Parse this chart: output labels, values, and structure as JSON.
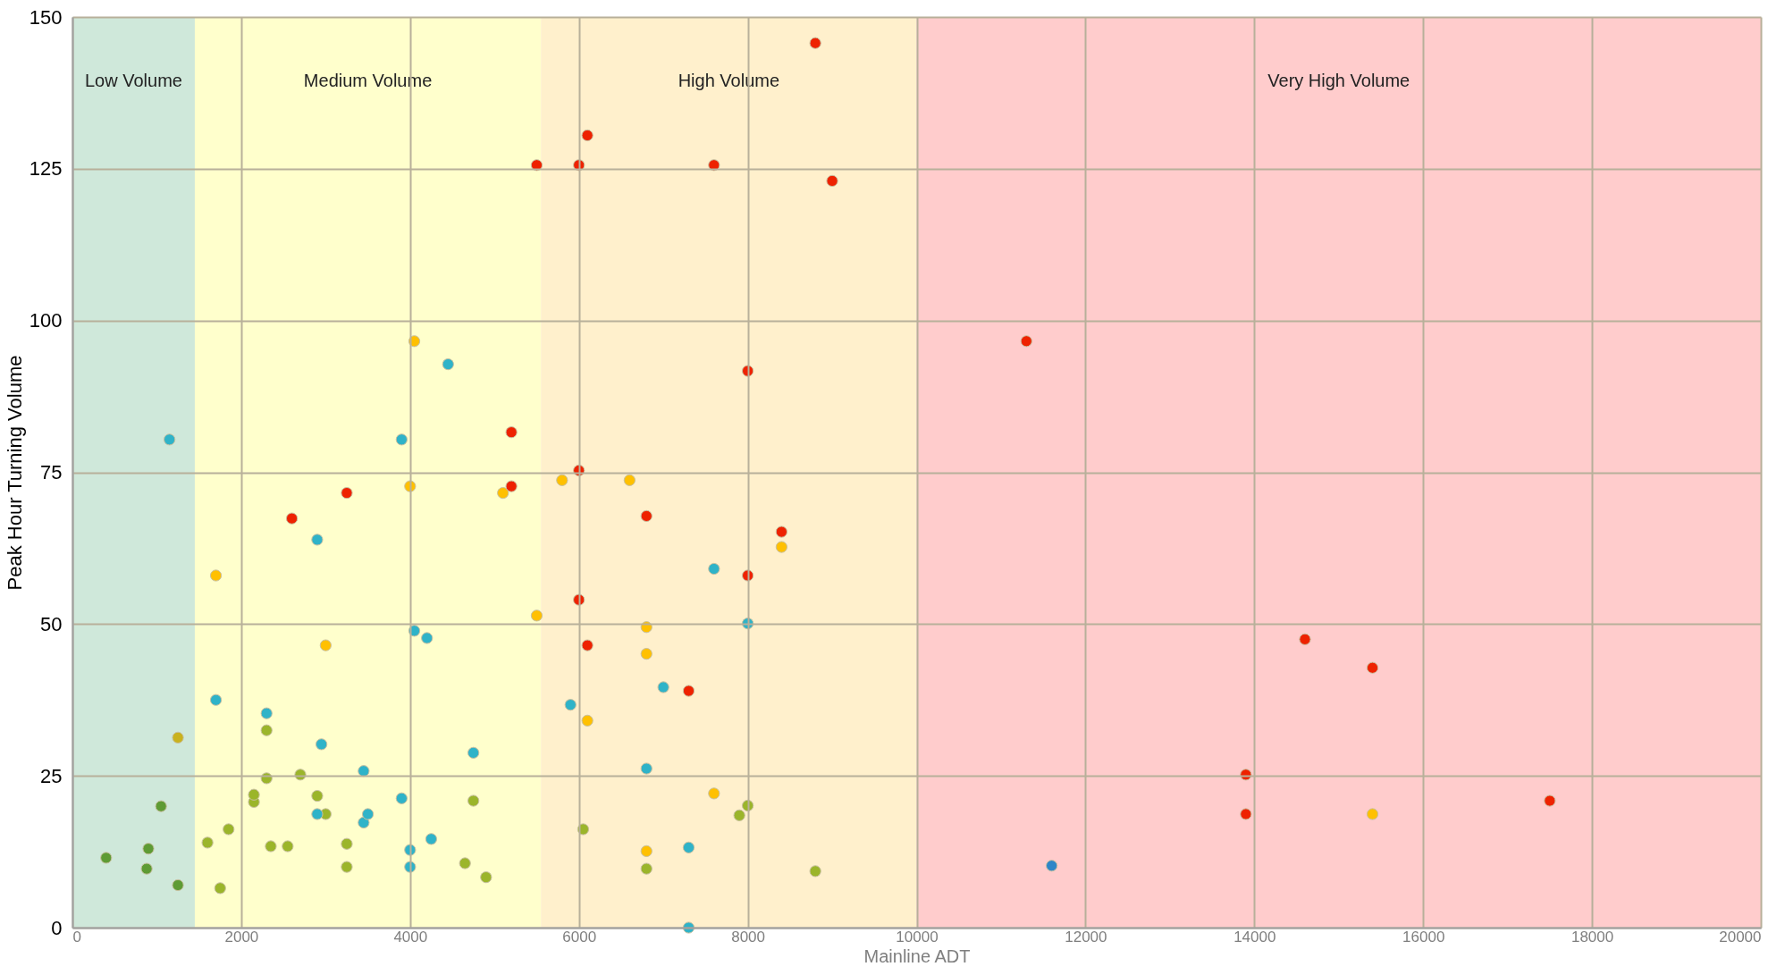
{
  "chart_data": {
    "type": "scatter",
    "xlabel": "Mainline ADT",
    "ylabel": "Peak Hour Turning Volume",
    "xlim": [
      0,
      20000
    ],
    "ylim": [
      0,
      150
    ],
    "xticks": [
      0,
      2000,
      4000,
      6000,
      8000,
      10000,
      12000,
      14000,
      16000,
      18000,
      20000
    ],
    "yticks": [
      0,
      25,
      50,
      75,
      100,
      125,
      150
    ],
    "grid": true,
    "marker": "circle",
    "bands": [
      {
        "axis": "x",
        "from": 0,
        "to": 1450,
        "label": "Low Volume",
        "color": "#cfe8da"
      },
      {
        "axis": "x",
        "from": 1450,
        "to": 5550,
        "label": "Medium Volume",
        "color": "#ffffcc"
      },
      {
        "axis": "x",
        "from": 5550,
        "to": 10000,
        "label": "High Volume",
        "color": "#fff0cc"
      },
      {
        "axis": "x",
        "from": 10000,
        "to": 20000,
        "label": "Very High Volume",
        "color": "#ffcccc"
      }
    ],
    "series": [
      {
        "color": "#5e9b34",
        "x": [
          400,
          880,
          900,
          1050,
          1250
        ],
        "values": [
          11.5,
          9.7,
          13,
          20,
          7
        ]
      },
      {
        "color": "#9bb52a",
        "x": [
          1600,
          1850,
          1750,
          2150,
          2150,
          2300,
          2300,
          2350,
          2550,
          2700,
          2900,
          3000,
          3250,
          3250,
          4750,
          4650,
          4900,
          6050,
          6800,
          7900,
          8000,
          8800
        ],
        "values": [
          14,
          16.2,
          6.5,
          20.7,
          21.9,
          24.6,
          32.5,
          13.4,
          13.4,
          25.2,
          21.7,
          18.7,
          13.8,
          10,
          20.9,
          10.6,
          8.3,
          16.2,
          9.7,
          18.5,
          20.1,
          9.3
        ]
      },
      {
        "color": "#2fb3c8",
        "x": [
          1150,
          1700,
          2300,
          2900,
          2900,
          2950,
          3450,
          3450,
          3500,
          3900,
          3900,
          4000,
          4000,
          4050,
          4200,
          4250,
          4450,
          4750,
          5900,
          6800,
          7000,
          7300,
          7300,
          7600,
          8000
        ],
        "values": [
          80.4,
          37.5,
          35.3,
          63.9,
          18.7,
          30.2,
          25.8,
          17.3,
          18.7,
          80.4,
          21.3,
          12.8,
          10,
          48.9,
          47.7,
          14.6,
          92.8,
          28.8,
          36.7,
          26.2,
          39.6,
          13.2,
          0,
          59.1,
          50.1
        ]
      },
      {
        "color": "#2e86c8",
        "x": [
          11600
        ],
        "values": [
          10.2
        ]
      },
      {
        "color": "#c9b21e",
        "x": [
          1250
        ],
        "values": [
          31.3
        ]
      },
      {
        "color": "#ffc000",
        "x": [
          1700,
          3000,
          4000,
          4050,
          5100,
          5500,
          5800,
          6600,
          6100,
          6800,
          6800,
          6800,
          7600,
          8400,
          15400
        ],
        "values": [
          58,
          46.5,
          72.7,
          96.6,
          71.6,
          51.4,
          73.7,
          73.7,
          34.1,
          49.5,
          45.1,
          12.6,
          22.1,
          62.7,
          18.7
        ]
      },
      {
        "color": "#ee2200",
        "x": [
          8800,
          6100,
          5500,
          6000,
          7600,
          9000,
          11300,
          8000,
          5200,
          5200,
          6000,
          3250,
          2600,
          6800,
          8400,
          8000,
          6000,
          6100,
          7300,
          14600,
          15400,
          13900,
          13900,
          17500
        ],
        "values": [
          145.7,
          130.5,
          125.6,
          125.6,
          125.6,
          123,
          96.6,
          91.7,
          81.6,
          72.7,
          75.3,
          71.6,
          67.4,
          67.8,
          65.2,
          58,
          54,
          46.5,
          39,
          47.5,
          42.8,
          25.2,
          18.7,
          20.9
        ]
      }
    ]
  }
}
